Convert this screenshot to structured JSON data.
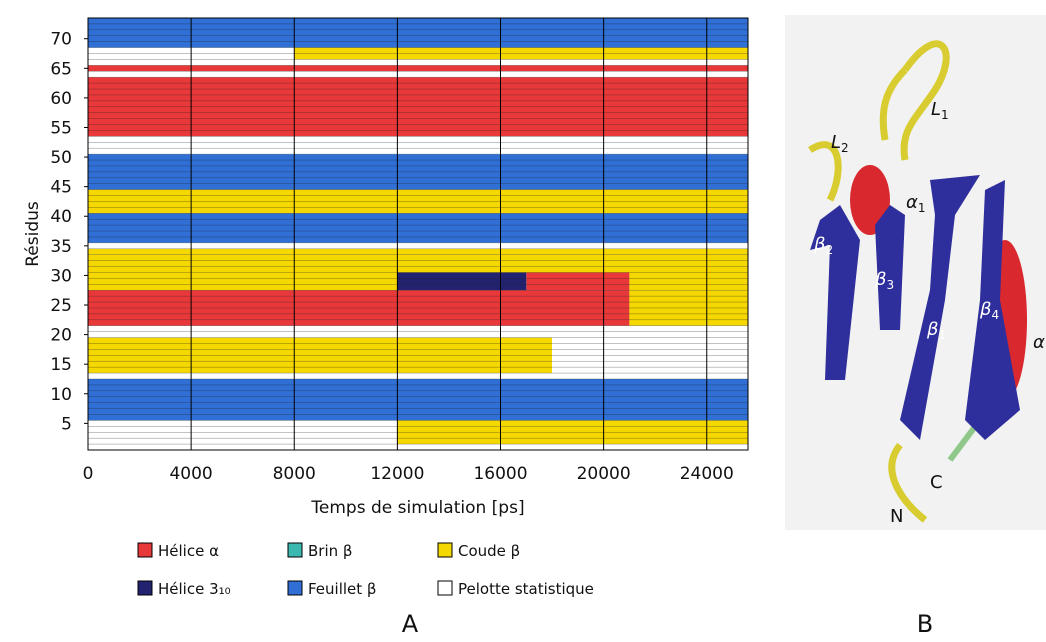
{
  "chart_data": {
    "type": "timeline",
    "y_label": "Résidus",
    "x_label": "Temps de simulation [ps]",
    "panel_label": "A",
    "xlim": [
      0,
      25600
    ],
    "xticks": [
      0,
      4000,
      8000,
      12000,
      16000,
      20000,
      24000
    ],
    "ylim": [
      0.5,
      73.5
    ],
    "yticks": [
      5,
      10,
      15,
      20,
      25,
      30,
      35,
      40,
      45,
      50,
      55,
      60,
      65,
      70
    ],
    "series": [
      {
        "name": "Hélice α",
        "color": "#e8383a",
        "blocks": [
          {
            "residues": [
              22,
              27
            ],
            "time": [
              0,
              21000
            ]
          },
          {
            "residues": [
              28,
              30
            ],
            "time": [
              17000,
              21000
            ]
          },
          {
            "residues": [
              54,
              63
            ],
            "time": [
              0,
              25600
            ]
          },
          {
            "residues": [
              65,
              65
            ],
            "time": [
              0,
              25600
            ]
          }
        ]
      },
      {
        "name": "Hélice 3₁₀",
        "color": "#232270",
        "blocks": [
          {
            "residues": [
              28,
              30
            ],
            "time": [
              12000,
              17000
            ]
          }
        ]
      },
      {
        "name": "Brin β",
        "color": "#3bb8b0",
        "blocks": []
      },
      {
        "name": "Feuillet β",
        "color": "#2f6fd6",
        "blocks": [
          {
            "residues": [
              6,
              12
            ],
            "time": [
              0,
              25600
            ]
          },
          {
            "residues": [
              36,
              40
            ],
            "time": [
              0,
              25600
            ]
          },
          {
            "residues": [
              45,
              50
            ],
            "time": [
              0,
              25600
            ]
          },
          {
            "residues": [
              69,
              73
            ],
            "time": [
              0,
              25600
            ]
          }
        ]
      },
      {
        "name": "Coude β",
        "color": "#f5d800",
        "blocks": [
          {
            "residues": [
              2,
              5
            ],
            "time": [
              12000,
              25600
            ]
          },
          {
            "residues": [
              14,
              19
            ],
            "time": [
              0,
              18000
            ]
          },
          {
            "residues": [
              22,
              27
            ],
            "time": [
              21000,
              25600
            ]
          },
          {
            "residues": [
              28,
              30
            ],
            "time": [
              0,
              12000
            ]
          },
          {
            "residues": [
              28,
              30
            ],
            "time": [
              21000,
              25600
            ]
          },
          {
            "residues": [
              31,
              33
            ],
            "time": [
              0,
              25600
            ]
          },
          {
            "residues": [
              34,
              34
            ],
            "time": [
              0,
              25600
            ]
          },
          {
            "residues": [
              41,
              44
            ],
            "time": [
              0,
              25600
            ]
          },
          {
            "residues": [
              67,
              68
            ],
            "time": [
              8000,
              25600
            ]
          }
        ]
      },
      {
        "name": "Pelotte statistique",
        "color": "#ffffff",
        "blocks": [
          {
            "residues": [
              1,
              1
            ],
            "time": [
              0,
              25600
            ]
          },
          {
            "residues": [
              2,
              5
            ],
            "time": [
              0,
              12000
            ]
          },
          {
            "residues": [
              13,
              13
            ],
            "time": [
              0,
              25600
            ]
          },
          {
            "residues": [
              14,
              19
            ],
            "time": [
              18000,
              25600
            ]
          },
          {
            "residues": [
              20,
              21
            ],
            "time": [
              0,
              25600
            ]
          },
          {
            "residues": [
              35,
              35
            ],
            "time": [
              0,
              25600
            ]
          },
          {
            "residues": [
              51,
              53
            ],
            "time": [
              0,
              25600
            ]
          },
          {
            "residues": [
              64,
              64
            ],
            "time": [
              0,
              25600
            ]
          },
          {
            "residues": [
              66,
              66
            ],
            "time": [
              0,
              25600
            ]
          },
          {
            "residues": [
              67,
              68
            ],
            "time": [
              0,
              8000
            ]
          }
        ]
      }
    ]
  },
  "illustration": {
    "panel_label": "B",
    "labels": [
      {
        "symbol": "L",
        "index": "1"
      },
      {
        "symbol": "L",
        "index": "2"
      },
      {
        "symbol": "α",
        "index": "1"
      },
      {
        "symbol": "β",
        "index": "2"
      },
      {
        "symbol": "β",
        "index": "3"
      },
      {
        "symbol": "β",
        "index": "1"
      },
      {
        "symbol": "β",
        "index": "4"
      },
      {
        "symbol": "α",
        "index": ""
      }
    ],
    "termini": [
      "C",
      "N"
    ]
  }
}
